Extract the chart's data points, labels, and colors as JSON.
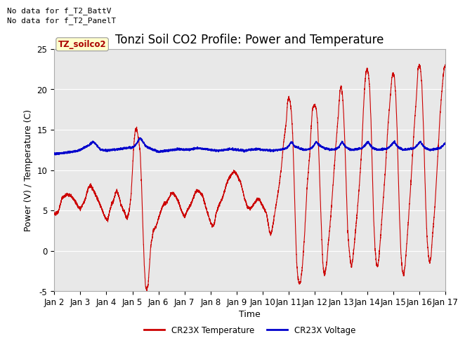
{
  "title": "Tonzi Soil CO2 Profile: Power and Temperature",
  "xlabel": "Time",
  "ylabel": "Power (V) / Temperature (C)",
  "ylim": [
    -5,
    25
  ],
  "xlim": [
    0,
    15
  ],
  "xtick_labels": [
    "Jan 2",
    "Jan 3",
    "Jan 4",
    "Jan 5",
    "Jan 6",
    "Jan 7",
    "Jan 8",
    "Jan 9",
    "Jan 10",
    "Jan 11",
    "Jan 12",
    "Jan 13",
    "Jan 14",
    "Jan 15",
    "Jan 16",
    "Jan 17"
  ],
  "xtick_positions": [
    0,
    1,
    2,
    3,
    4,
    5,
    6,
    7,
    8,
    9,
    10,
    11,
    12,
    13,
    14,
    15
  ],
  "ytick_positions": [
    -5,
    0,
    5,
    10,
    15,
    20,
    25
  ],
  "background_color": "#e8e8e8",
  "red_color": "#cc0000",
  "blue_color": "#0000cc",
  "legend_label_red": "CR23X Temperature",
  "legend_label_blue": "CR23X Voltage",
  "no_data_text1": "No data for f_T2_BattV",
  "no_data_text2": "No data for f_T2_PanelT",
  "box_label": "TZ_soilco2",
  "box_color": "#ffffcc",
  "box_text_color": "#aa0000",
  "title_fontsize": 12,
  "axis_fontsize": 9,
  "tick_fontsize": 8.5
}
